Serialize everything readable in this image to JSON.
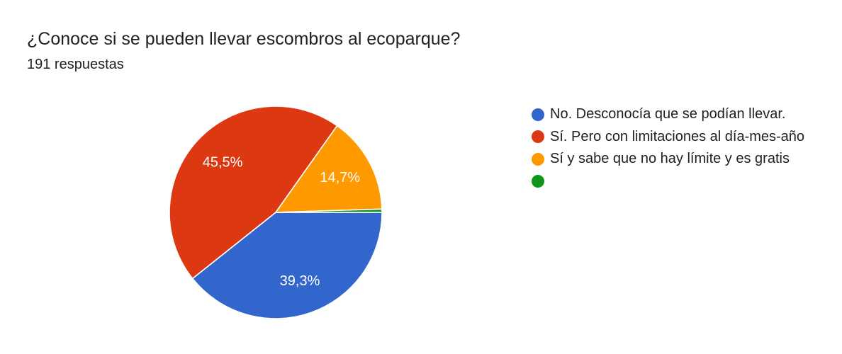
{
  "chart_data": {
    "type": "pie",
    "title": "¿Conoce si se pueden llevar escombros al ecoparque?",
    "subtitle": "191 respuestas",
    "total_responses": 191,
    "legend_position": "right",
    "start_angle_deg": 90,
    "direction": "clockwise",
    "slice_label_color": "#ffffff",
    "background_color": "#ffffff",
    "slices": [
      {
        "label": "No. Desconocía que se podían llevar.",
        "percent": 39.3,
        "percent_label": "39,3%",
        "color": "#3366CC"
      },
      {
        "label": "Sí. Pero con limitaciones al día-mes-año",
        "percent": 45.5,
        "percent_label": "45,5%",
        "color": "#DC3912"
      },
      {
        "label": "Sí y sabe que no hay límite y es gratis",
        "percent": 14.7,
        "percent_label": "14,7%",
        "color": "#FF9900"
      },
      {
        "label": "",
        "percent": 0.5,
        "percent_label": "",
        "color": "#109618"
      }
    ]
  }
}
